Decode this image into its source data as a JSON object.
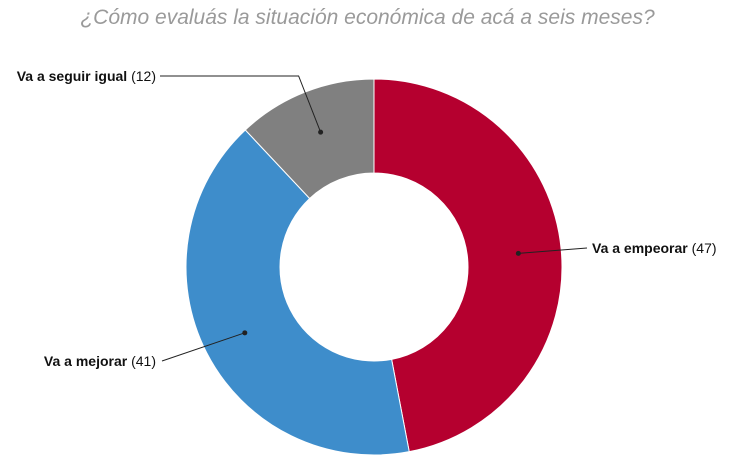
{
  "chart_data": {
    "type": "pie",
    "variant": "donut",
    "title": "¿Cómo evaluás la situación económica de acá a seis meses?",
    "slices": [
      {
        "name": "Va a empeorar",
        "value": 47,
        "value_label": "(47)",
        "color": "#b5002f"
      },
      {
        "name": "Va a mejorar",
        "value": 41,
        "value_label": "(41)",
        "color": "#3e8dcb"
      },
      {
        "name": "Va a seguir igual",
        "value": 12,
        "value_label": "(12)",
        "color": "#808080"
      }
    ],
    "legend": "none",
    "labels": "outside-with-leader-lines"
  }
}
